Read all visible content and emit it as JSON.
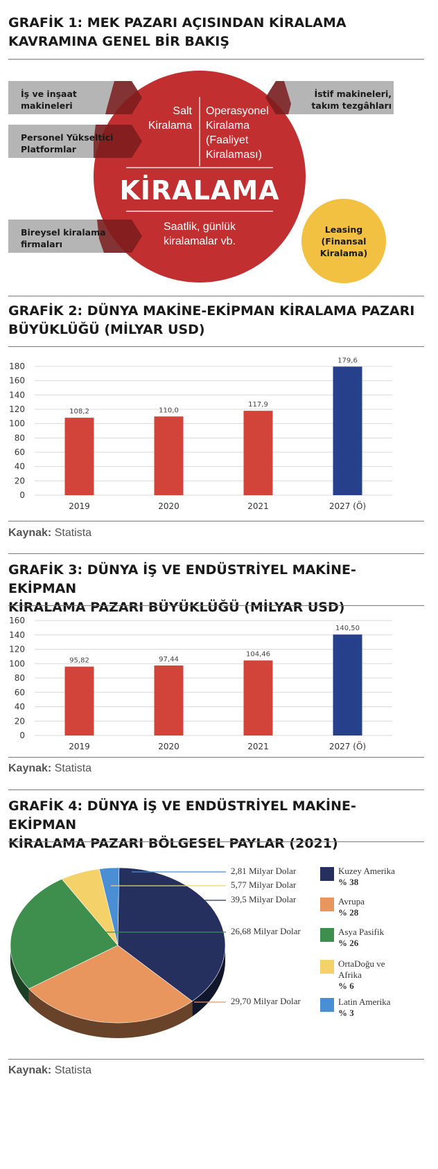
{
  "grafik1": {
    "title_line1": "GRAFİK 1: MEK PAZARI AÇISINDAN KİRALAMA",
    "title_line2": "KAVRAMINA GENEL BİR BAKIŞ",
    "left_boxes": [
      "İş ve inşaat makineleri",
      "Personel Yükseltici Platformlar",
      "Bireysel kiralama firmaları"
    ],
    "right_box": "İstif makineleri, takım tezgâhları",
    "salt_line1": "Salt",
    "salt_line2": "Kiralama",
    "operasyonel_lines": [
      "Operasyonel",
      "Kiralama",
      "(Faaliyet",
      "Kiralaması)"
    ],
    "center_word": "KİRALAMA",
    "bottom_line1": "Saatlik, günlük",
    "bottom_line2": "kiralamalar vb.",
    "leasing_lines": [
      "Leasing",
      "(Finansal",
      "Kiralama)"
    ],
    "colors": {
      "red": "#c0282a",
      "gray": "#b5b5b5",
      "yellow": "#f2c141"
    }
  },
  "grafik2": {
    "title_line1": "GRAFİK 2: DÜNYA MAKİNE-EKİPMAN KİRALAMA PAZARI",
    "title_line2": "BÜYÜKLÜĞÜ (MİLYAR USD)",
    "source_label": "Kaynak:",
    "source_value": "Statista"
  },
  "grafik3": {
    "title_line1": "GRAFİK 3: DÜNYA İŞ VE ENDÜSTRİYEL MAKİNE-EKİPMAN",
    "title_line2": "KİRALAMA PAZARI BÜYÜKLÜĞÜ (MİLYAR USD)",
    "source_label": "Kaynak:",
    "source_value": "Statista"
  },
  "grafik4": {
    "title_line1": "GRAFİK 4: DÜNYA İŞ VE ENDÜSTRİYEL MAKİNE-EKİPMAN",
    "title_line2": "KİRALAMA PAZARI BÖLGESEL PAYLAR (2021)",
    "source_label": "Kaynak:",
    "source_value": "Statista"
  },
  "chart_data": [
    {
      "type": "bar",
      "categories": [
        "2019",
        "2020",
        "2021",
        "2027 (Ö)"
      ],
      "values": [
        108.2,
        110.0,
        117.9,
        179.6
      ],
      "data_labels": [
        "108,2",
        "110,0",
        "117,9",
        "179,6"
      ],
      "bar_colors": [
        "#d2443a",
        "#d2443a",
        "#d2443a",
        "#27408b"
      ],
      "ylim": [
        0,
        180
      ],
      "yticks": [
        0,
        20,
        40,
        60,
        80,
        100,
        120,
        140,
        160,
        180
      ],
      "grid": true
    },
    {
      "type": "bar",
      "categories": [
        "2019",
        "2020",
        "2021",
        "2027 (Ö)"
      ],
      "values": [
        95.82,
        97.44,
        104.46,
        140.5
      ],
      "data_labels": [
        "95,82",
        "97,44",
        "104,46",
        "140,50"
      ],
      "bar_colors": [
        "#d2443a",
        "#d2443a",
        "#d2443a",
        "#27408b"
      ],
      "ylim": [
        0,
        160
      ],
      "yticks": [
        0,
        20,
        40,
        60,
        80,
        100,
        120,
        140,
        160
      ],
      "grid": true
    },
    {
      "type": "pie",
      "slices": [
        {
          "name": "Kuzey Amerika",
          "percent_label": "% 38",
          "value": 38,
          "amount_label": "39,5 Milyar Dolar",
          "color": "#25305e"
        },
        {
          "name": "Avrupa",
          "percent_label": "% 28",
          "value": 28,
          "amount_label": "29,70 Milyar Dolar",
          "color": "#e8955e"
        },
        {
          "name": "Asya Pasifik",
          "percent_label": "% 26",
          "value": 26,
          "amount_label": "26,68 Milyar Dolar",
          "color": "#3e8f4e"
        },
        {
          "name": "OrtaDoğu ve Afrika",
          "percent_label": "% 6",
          "value": 6,
          "amount_label": "5,77 Milyar Dolar",
          "color": "#f5d16a"
        },
        {
          "name": "Latin Amerika",
          "percent_label": "% 3",
          "value": 3,
          "amount_label": "2,81 Milyar Dolar",
          "color": "#4a8fd4"
        }
      ],
      "legend_position": "right"
    }
  ]
}
